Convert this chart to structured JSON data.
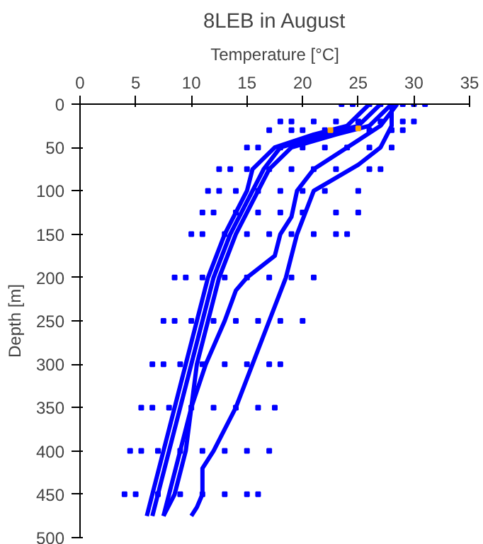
{
  "chart_data": {
    "type": "line",
    "title": "8LEB in August",
    "xlabel": "Temperature [°C]",
    "ylabel": "Depth [m]",
    "xlim": [
      0,
      35
    ],
    "xticks": [
      0,
      5,
      10,
      15,
      20,
      25,
      30,
      35
    ],
    "ylim": [
      500,
      0
    ],
    "yticks": [
      0,
      50,
      100,
      150,
      200,
      250,
      300,
      350,
      400,
      450,
      500
    ],
    "grid": false,
    "marker": "none",
    "line_style": "solid",
    "series": [
      {
        "color": "#0000ff",
        "x": [
          26,
          24,
          21,
          17.5,
          15.5,
          15,
          13,
          11.5,
          10.5,
          9.5,
          8.5,
          7.5,
          6.5,
          6
        ],
        "values": [
          0,
          25,
          35,
          50,
          75,
          100,
          150,
          200,
          250,
          300,
          350,
          400,
          450,
          475
        ]
      },
      {
        "color": "#0000ff",
        "x": [
          27,
          25,
          22,
          18,
          16.5,
          15.5,
          13.5,
          12,
          11,
          10,
          9,
          8,
          7,
          6.5
        ],
        "values": [
          0,
          25,
          35,
          50,
          75,
          100,
          150,
          200,
          250,
          300,
          350,
          400,
          450,
          475
        ]
      },
      {
        "color": "#0000ff",
        "x": [
          28,
          26,
          23,
          19,
          17,
          16,
          14,
          12.5,
          11.5,
          10.5,
          10,
          9,
          8,
          7.5
        ],
        "values": [
          0,
          25,
          35,
          50,
          75,
          100,
          150,
          200,
          250,
          300,
          350,
          400,
          450,
          475
        ]
      },
      {
        "color": "#0000ff",
        "x": [
          28.5,
          27,
          24,
          21,
          19.5,
          19,
          18,
          17.5,
          15,
          14,
          13,
          11.3,
          10,
          9.5,
          8.5,
          7.5
        ],
        "values": [
          0,
          25,
          50,
          75,
          100,
          130,
          150,
          175,
          200,
          215,
          250,
          300,
          350,
          400,
          450,
          475
        ]
      },
      {
        "color": "#0000ff",
        "x": [
          28,
          28,
          27,
          25,
          21,
          19.5,
          18.5,
          17,
          15.5,
          14,
          12,
          11,
          11,
          10.5,
          10
        ],
        "values": [
          0,
          25,
          50,
          70,
          100,
          150,
          200,
          250,
          300,
          350,
          400,
          420,
          450,
          465,
          475
        ]
      },
      {
        "type": "scatter",
        "marker": "square",
        "color": "#0000ff",
        "x": [
          23.5,
          24.5,
          26,
          27,
          29,
          30,
          31,
          18,
          19,
          21,
          23,
          25,
          27,
          29,
          30,
          17,
          19,
          20,
          22,
          26,
          28,
          29,
          15,
          16,
          18,
          20,
          22,
          24,
          26,
          28,
          12.5,
          13.5,
          15,
          17,
          19,
          21,
          23,
          26,
          27,
          11.5,
          12.5,
          14,
          16,
          18,
          20,
          22,
          25,
          11,
          12,
          14,
          16,
          18,
          20,
          23,
          25,
          10,
          11,
          13,
          15,
          17,
          19,
          21,
          23,
          24,
          8.5,
          9.5,
          11,
          13,
          15,
          17,
          19,
          21,
          7.5,
          8.5,
          10,
          12,
          14,
          16,
          18,
          20,
          6.5,
          7.5,
          9,
          11,
          13,
          15,
          17,
          18,
          5.5,
          6.5,
          8,
          10,
          12,
          14,
          16,
          17.5,
          4.5,
          5.5,
          7,
          9,
          11,
          13,
          15,
          17,
          4,
          5,
          7,
          9,
          11,
          13,
          15,
          16
        ],
        "values": [
          0,
          0,
          0,
          0,
          0,
          0,
          0,
          20,
          20,
          20,
          20,
          20,
          20,
          20,
          20,
          30,
          30,
          30,
          30,
          30,
          30,
          30,
          50,
          50,
          50,
          50,
          50,
          50,
          50,
          50,
          75,
          75,
          75,
          75,
          75,
          75,
          75,
          75,
          75,
          100,
          100,
          100,
          100,
          100,
          100,
          100,
          100,
          125,
          125,
          125,
          125,
          125,
          125,
          125,
          125,
          150,
          150,
          150,
          150,
          150,
          150,
          150,
          150,
          150,
          200,
          200,
          200,
          200,
          200,
          200,
          200,
          200,
          250,
          250,
          250,
          250,
          250,
          250,
          250,
          250,
          300,
          300,
          300,
          300,
          300,
          300,
          300,
          300,
          350,
          350,
          350,
          350,
          350,
          350,
          350,
          350,
          400,
          400,
          400,
          400,
          400,
          400,
          400,
          400,
          450,
          450,
          450,
          450,
          450,
          450,
          450,
          450
        ]
      },
      {
        "type": "scatter",
        "marker": "square",
        "color": "#ffa500",
        "x": [
          22.5,
          25
        ],
        "values": [
          30,
          28
        ]
      }
    ]
  }
}
